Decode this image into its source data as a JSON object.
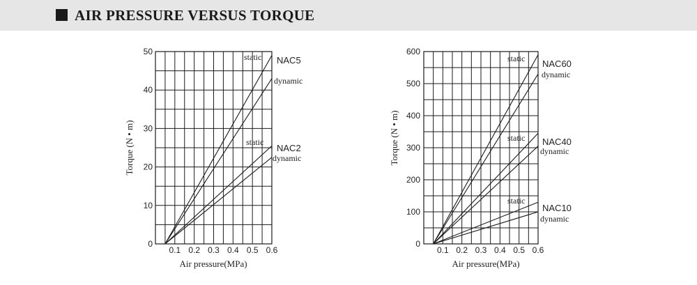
{
  "header": {
    "title": "AIR PRESSURE VERSUS TORQUE"
  },
  "colors": {
    "header_bg": "#e6e6e6",
    "line": "#1a1a1a",
    "grid": "#1a1a1a"
  },
  "chart_data": [
    {
      "type": "line",
      "xlabel": "Air pressure(MPa)",
      "ylabel": "Torque (N • m)",
      "xlim": [
        0,
        0.6
      ],
      "ylim": [
        0,
        50
      ],
      "x_ticks": [
        "0.1",
        "0.2",
        "0.3",
        "0.4",
        "0.5",
        "0.6"
      ],
      "y_ticks": [
        "0",
        "10",
        "20",
        "30",
        "40",
        "50"
      ],
      "grid": true,
      "series": [
        {
          "name": "static",
          "model": "NAC5",
          "x": [
            0.05,
            0.6
          ],
          "y": [
            0,
            49
          ]
        },
        {
          "name": "dynamic",
          "model": "NAC5",
          "x": [
            0.05,
            0.6
          ],
          "y": [
            0,
            43
          ]
        },
        {
          "name": "static",
          "model": "NAC2",
          "x": [
            0.05,
            0.6
          ],
          "y": [
            0,
            25.5
          ]
        },
        {
          "name": "dynamic",
          "model": "NAC2",
          "x": [
            0.05,
            0.6
          ],
          "y": [
            0,
            22.5
          ]
        }
      ],
      "model_labels": [
        "NAC5",
        "NAC2"
      ]
    },
    {
      "type": "line",
      "xlabel": "Air pressure(MPa)",
      "ylabel": "Torque (N • m)",
      "xlim": [
        0,
        0.6
      ],
      "ylim": [
        0,
        600
      ],
      "x_ticks": [
        "0.1",
        "0.2",
        "0.3",
        "0.4",
        "0.5",
        "0.6"
      ],
      "y_ticks": [
        "0",
        "100",
        "200",
        "300",
        "400",
        "500",
        "600"
      ],
      "grid": true,
      "series": [
        {
          "name": "static",
          "model": "NAC60",
          "x": [
            0.05,
            0.6
          ],
          "y": [
            0,
            590
          ]
        },
        {
          "name": "dynamic",
          "model": "NAC60",
          "x": [
            0.05,
            0.6
          ],
          "y": [
            0,
            530
          ]
        },
        {
          "name": "static",
          "model": "NAC40",
          "x": [
            0.05,
            0.6
          ],
          "y": [
            0,
            345
          ]
        },
        {
          "name": "dynamic",
          "model": "NAC40",
          "x": [
            0.05,
            0.6
          ],
          "y": [
            0,
            305
          ]
        },
        {
          "name": "static",
          "model": "NAC10",
          "x": [
            0.05,
            0.6
          ],
          "y": [
            0,
            130
          ]
        },
        {
          "name": "dynamic",
          "model": "NAC10",
          "x": [
            0.05,
            0.6
          ],
          "y": [
            0,
            100
          ]
        }
      ],
      "model_labels": [
        "NAC60",
        "NAC40",
        "NAC10"
      ]
    }
  ]
}
